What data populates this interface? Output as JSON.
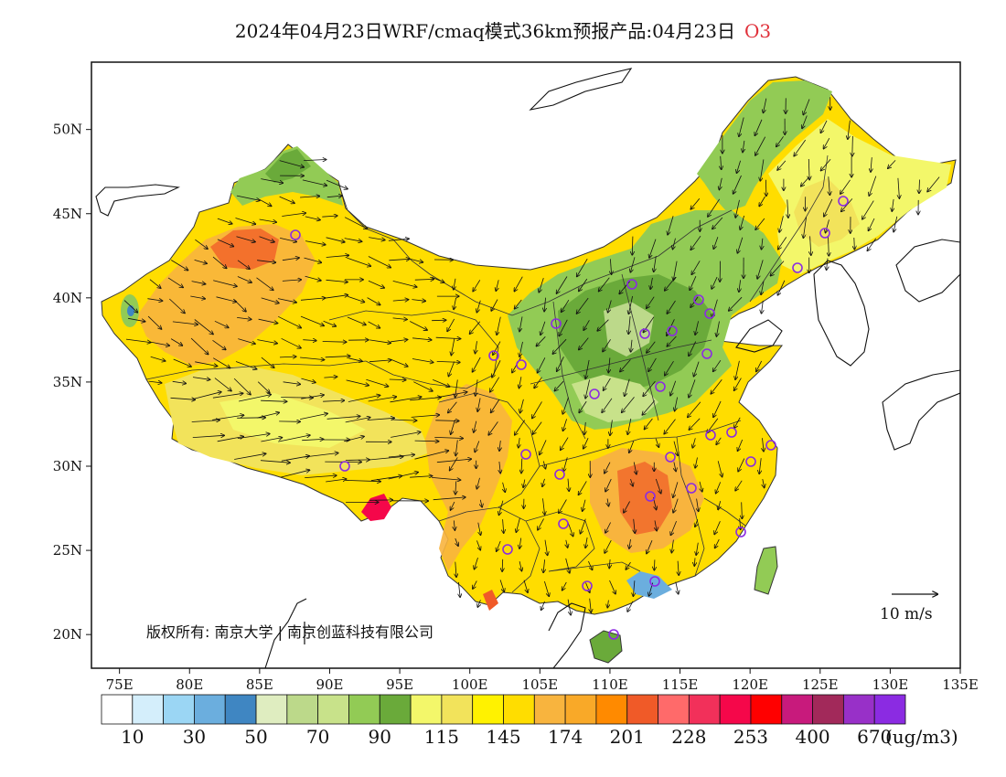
{
  "title": {
    "text": "2024年04月23日WRF/cmaq模式36km预报产品:04月23日",
    "species": "O3"
  },
  "map": {
    "lon_range": [
      73,
      135
    ],
    "lat_range": [
      18,
      54
    ],
    "lon_ticks": [
      "75E",
      "80E",
      "85E",
      "90E",
      "95E",
      "100E",
      "105E",
      "110E",
      "115E",
      "120E",
      "125E",
      "130E",
      "135E"
    ],
    "lat_ticks": [
      "20N",
      "25N",
      "30N",
      "35N",
      "40N",
      "45N",
      "50N"
    ],
    "copyright": "版权所有: 南京大学 | 南京创蓝科技有限公司",
    "wind_scale_label": "10 m/s",
    "station_count_shown": 27
  },
  "colorbar": {
    "unit": "(ug/m3)",
    "tick_labels": [
      "10",
      "30",
      "50",
      "70",
      "90",
      "115",
      "145",
      "174",
      "201",
      "228",
      "253",
      "400",
      "670"
    ],
    "colors": [
      "#ffffff",
      "#d4eefb",
      "#9bd6f4",
      "#6baede",
      "#3f86c2",
      "#dfedc0",
      "#bcd98a",
      "#c8e28a",
      "#92cb55",
      "#6aaa3a",
      "#f3f76a",
      "#f2e35b",
      "#fff200",
      "#ffdd00",
      "#f8b43e",
      "#f9a928",
      "#ff8a00",
      "#f05a28",
      "#ff6a6a",
      "#f2305a",
      "#f5074a",
      "#ff0000",
      "#c81a7c",
      "#a2295a",
      "#9830c8",
      "#8b2be2"
    ]
  },
  "legend_colors": {
    "good": "#6aaa3a",
    "moderate": "#ffdd00",
    "light_pollution": "#f8b43e",
    "heavy": "#f05a28",
    "severe": "#f5074a"
  }
}
